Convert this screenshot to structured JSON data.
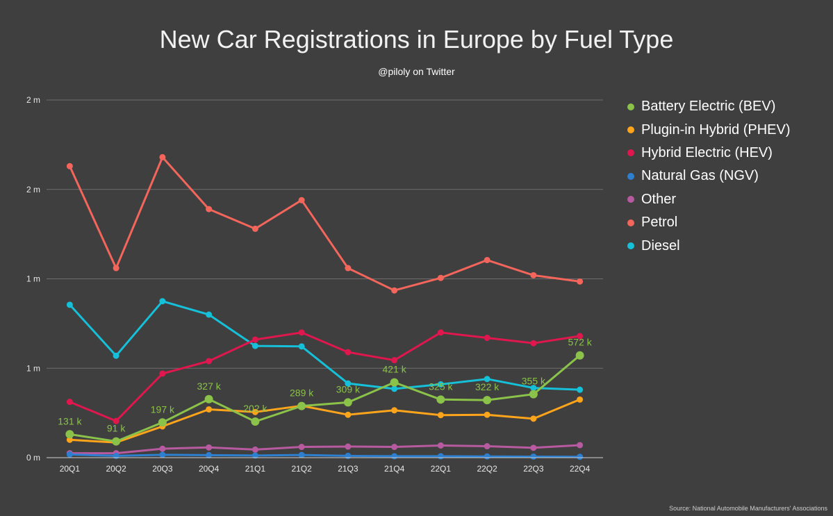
{
  "chart_data": {
    "type": "line",
    "title": "New Car Registrations in Europe by Fuel Type",
    "subtitle": "@piloly on Twitter",
    "source": "Source: National Automobile Manufacturers' Associations",
    "categories": [
      "20Q1",
      "20Q2",
      "20Q3",
      "20Q4",
      "21Q1",
      "21Q2",
      "21Q3",
      "21Q4",
      "22Q1",
      "22Q2",
      "22Q3",
      "22Q4"
    ],
    "y_ticks": [
      {
        "value": 0,
        "label": "0 m"
      },
      {
        "value": 500000,
        "label": "1 m"
      },
      {
        "value": 1000000,
        "label": "1 m"
      },
      {
        "value": 1500000,
        "label": "2 m"
      },
      {
        "value": 2000000,
        "label": "2 m"
      }
    ],
    "ylim": [
      0,
      2000000
    ],
    "grid": true,
    "legend_position": "right",
    "series": [
      {
        "name": "Battery Electric (BEV)",
        "color": "#8bc34a",
        "values": [
          131000,
          91000,
          197000,
          327000,
          202000,
          289000,
          309000,
          421000,
          325000,
          322000,
          355000,
          572000
        ],
        "labels": [
          "131 k",
          "91 k",
          "197 k",
          "327 k",
          "202 k",
          "289 k",
          "309 k",
          "421 k",
          "325 k",
          "322 k",
          "355 k",
          "572 k"
        ]
      },
      {
        "name": "Plugin-in Hybrid (PHEV)",
        "color": "#ffa41b",
        "values": [
          100000,
          85000,
          175000,
          270000,
          255000,
          290000,
          240000,
          265000,
          238000,
          240000,
          218000,
          325000
        ]
      },
      {
        "name": "Hybrid Electric (HEV)",
        "color": "#e0174f",
        "values": [
          312000,
          205000,
          470000,
          540000,
          660000,
          700000,
          590000,
          545000,
          700000,
          670000,
          640000,
          680000
        ]
      },
      {
        "name": "Natural Gas (NGV)",
        "color": "#2d7fd0",
        "values": [
          18000,
          10000,
          16000,
          14000,
          12000,
          15000,
          10000,
          8000,
          8000,
          7000,
          6000,
          5000
        ]
      },
      {
        "name": "Other",
        "color": "#b85aa0",
        "values": [
          25000,
          25000,
          50000,
          57000,
          45000,
          60000,
          62000,
          60000,
          68000,
          64000,
          55000,
          70000
        ]
      },
      {
        "name": "Petrol",
        "color": "#f4665c",
        "values": [
          1630000,
          1060000,
          1680000,
          1390000,
          1280000,
          1440000,
          1060000,
          935000,
          1005000,
          1105000,
          1020000,
          985000
        ]
      },
      {
        "name": "Diesel",
        "color": "#15c0d8",
        "values": [
          855000,
          570000,
          875000,
          800000,
          625000,
          622000,
          415000,
          385000,
          410000,
          440000,
          390000,
          380000
        ]
      }
    ]
  }
}
